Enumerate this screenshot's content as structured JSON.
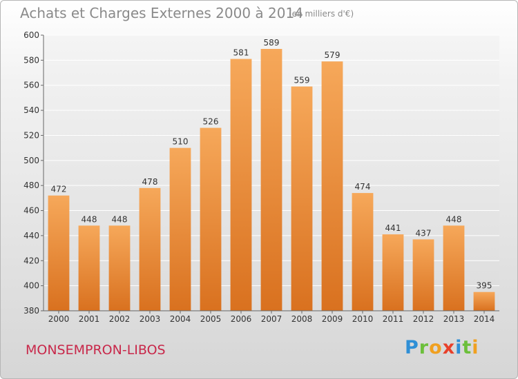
{
  "chart_data": {
    "type": "bar",
    "title": "Achats et Charges Externes 2000 à 2014",
    "subtitle": "(en milliers d'€)",
    "categories": [
      "2000",
      "2001",
      "2002",
      "2003",
      "2004",
      "2005",
      "2006",
      "2007",
      "2008",
      "2009",
      "2010",
      "2011",
      "2012",
      "2013",
      "2014"
    ],
    "values": [
      472,
      448,
      448,
      478,
      510,
      526,
      581,
      589,
      559,
      579,
      474,
      441,
      437,
      448,
      395
    ],
    "ylim": [
      380,
      600
    ],
    "yticks": [
      380,
      400,
      420,
      440,
      460,
      480,
      500,
      520,
      540,
      560,
      580,
      600
    ],
    "grid": true,
    "bar_color": "#f08a2a"
  },
  "footer": {
    "commune": "MONSEMPRON-LIBOS",
    "logo": "Proxiti"
  }
}
